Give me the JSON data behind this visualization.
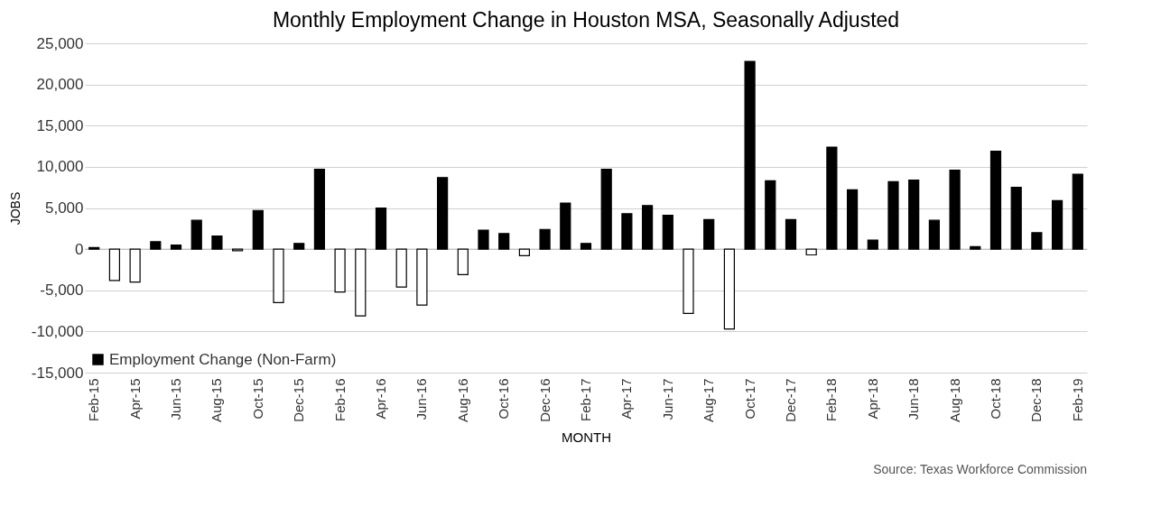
{
  "chart_data": {
    "type": "bar",
    "title": "Monthly Employment Change in Houston MSA, Seasonally Adjusted",
    "xlabel": "MONTH",
    "ylabel": "JOBS",
    "categories": [
      "Feb-15",
      null,
      "Apr-15",
      null,
      "Jun-15",
      null,
      "Aug-15",
      null,
      "Oct-15",
      null,
      "Dec-15",
      null,
      "Feb-16",
      null,
      "Apr-16",
      null,
      "Jun-16",
      null,
      "Aug-16",
      null,
      "Oct-16",
      null,
      "Dec-16",
      null,
      "Feb-17",
      null,
      "Apr-17",
      null,
      "Jun-17",
      null,
      "Aug-17",
      null,
      "Oct-17",
      null,
      "Dec-17",
      null,
      "Feb-18",
      null,
      "Apr-18",
      null,
      "Jun-18",
      null,
      "Aug-18",
      null,
      "Oct-18",
      null,
      "Dec-18",
      null,
      "Feb-19"
    ],
    "series": [
      {
        "name": "Employment Change (Non-Farm)",
        "color": "#000000",
        "values": [
          200,
          -3800,
          -4000,
          900,
          500,
          3500,
          1600,
          -200,
          4700,
          -6500,
          700,
          9700,
          -5200,
          -8100,
          5000,
          -4600,
          -6800,
          8700,
          -3100,
          2300,
          1900,
          -800,
          2400,
          5600,
          700,
          9700,
          4300,
          5300,
          4100,
          -7800,
          3600,
          -9700,
          22800,
          8300,
          3600,
          -700,
          12400,
          7200,
          1100,
          8200,
          8400,
          3500,
          9600,
          300,
          11900,
          7500,
          2000,
          5900,
          9100
        ],
        "colors": [
          "#000000",
          "#ffffff",
          "#ffffff",
          "#000000",
          "#000000",
          "#000000",
          "#000000",
          "#ffffff",
          "#000000",
          "#ffffff",
          "#000000",
          "#000000",
          "#ffffff",
          "#ffffff",
          "#000000",
          "#ffffff",
          "#ffffff",
          "#000000",
          "#ffffff",
          "#000000",
          "#000000",
          "#ffffff",
          "#000000",
          "#000000",
          "#000000",
          "#000000",
          "#000000",
          "#000000",
          "#000000",
          "#ffffff",
          "#000000",
          "#ffffff",
          "#000000",
          "#000000",
          "#000000",
          "#ffffff",
          "#000000",
          "#000000",
          "#000000",
          "#000000",
          "#000000",
          "#000000",
          "#000000",
          "#000000",
          "#000000",
          "#000000",
          "#000000",
          "#000000",
          "#000000"
        ]
      }
    ],
    "ylim": [
      -15000,
      25000
    ],
    "yticks": [
      {
        "value": -15000,
        "label": "-15,000"
      },
      {
        "value": -10000,
        "label": "-10,000"
      },
      {
        "value": -5000,
        "label": "-5,000"
      },
      0,
      {
        "value": 5000,
        "label": "5,000"
      },
      {
        "value": 10000,
        "label": "10,000"
      },
      {
        "value": 15000,
        "label": "15,000"
      },
      {
        "value": 20000,
        "label": "20,000"
      },
      {
        "value": 25000,
        "label": "25,000"
      }
    ],
    "grid": "y",
    "legend": "bottom left",
    "annotations": [
      "Source: Texas Workforce Commission"
    ]
  }
}
